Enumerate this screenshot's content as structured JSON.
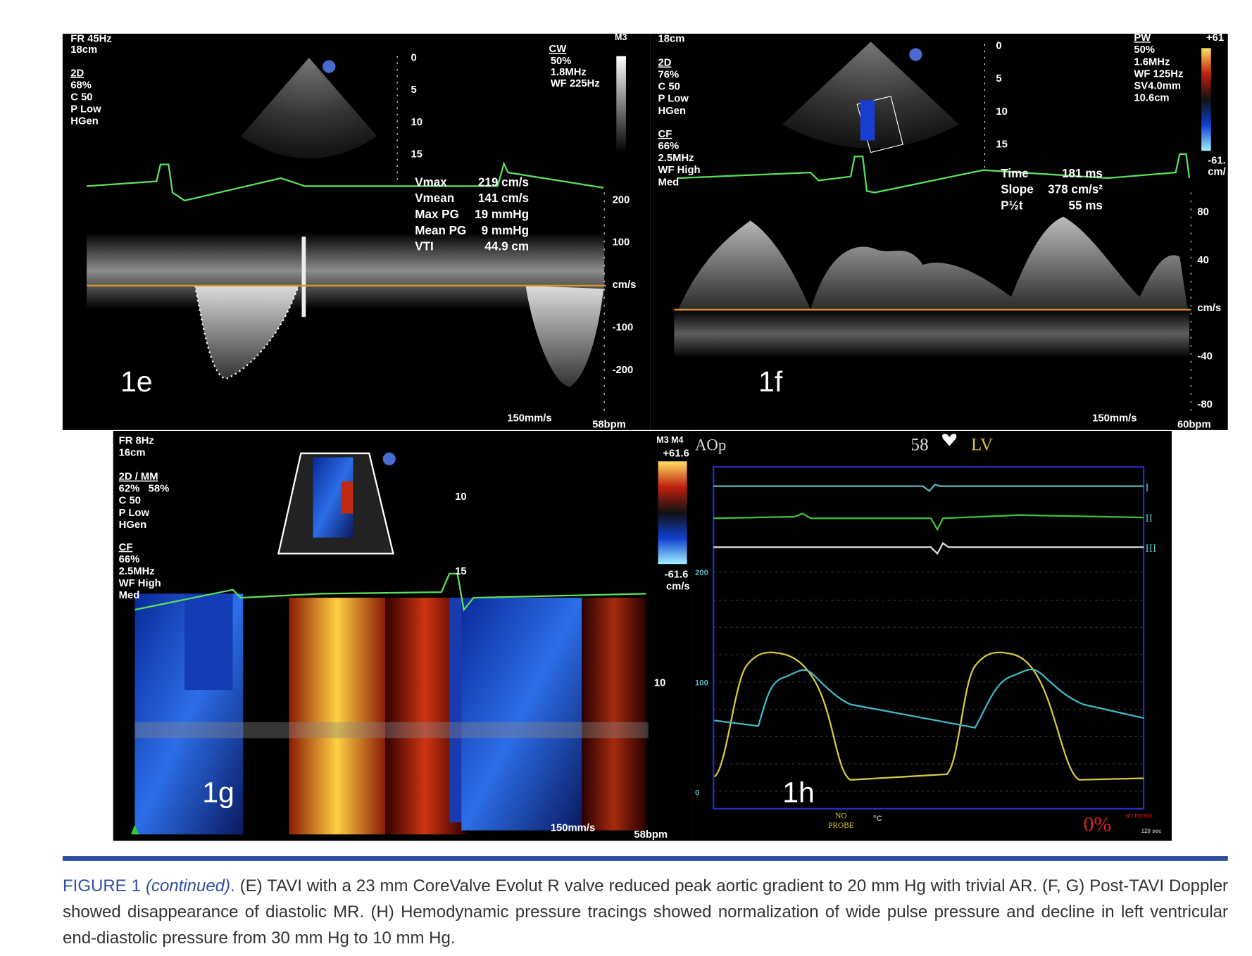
{
  "panels": {
    "e": {
      "label": "1e",
      "header": [
        "FR 45Hz",
        "18cm"
      ],
      "settings_2d": {
        "title": "2D",
        "lines": [
          "68%",
          "C 50",
          "P Low",
          "HGen"
        ]
      },
      "cw": {
        "title": "CW",
        "lines": [
          "50%",
          "1.8MHz",
          "WF 225Hz"
        ]
      },
      "map": "M3",
      "depth": [
        "0",
        "5",
        "10",
        "15"
      ],
      "measurements": [
        {
          "name": "Vmax",
          "value": "219 cm/s"
        },
        {
          "name": "Vmean",
          "value": "141 cm/s"
        },
        {
          "name": "Max PG",
          "value": "19 mmHg"
        },
        {
          "name": "Mean PG",
          "value": "9 mmHg"
        },
        {
          "name": "VTI",
          "value": "44.9 cm"
        }
      ],
      "scale": [
        "200",
        "100",
        "cm/s",
        "-100",
        "-200"
      ],
      "sweep": "150mm/s",
      "rate": "58bpm"
    },
    "f": {
      "label": "1f",
      "header": [
        "18cm"
      ],
      "settings_2d": {
        "title": "2D",
        "lines": [
          "76%",
          "C 50",
          "P Low",
          "HGen"
        ]
      },
      "cf": {
        "title": "CF",
        "lines": [
          "66%",
          "2.5MHz",
          "WF High",
          "Med"
        ]
      },
      "pw": {
        "title": "PW",
        "lines": [
          "50%",
          "1.6MHz",
          "WF 125Hz",
          "SV4.0mm",
          "10.6cm"
        ]
      },
      "colorbar": {
        "max": "+61",
        "min": "-61.",
        "unit": "cm/"
      },
      "depth": [
        "0",
        "5",
        "10",
        "15"
      ],
      "measurements": [
        {
          "name": "Time",
          "value": "181 ms"
        },
        {
          "name": "Slope",
          "value": "378 cm/s²"
        },
        {
          "name": "P½t",
          "value": "55 ms"
        }
      ],
      "scale": [
        "80",
        "40",
        "cm/s",
        "-40",
        "-80"
      ],
      "sweep": "150mm/s",
      "rate": "60bpm"
    },
    "g": {
      "label": "1g",
      "header": [
        "FR 8Hz",
        "16cm"
      ],
      "settings_2d": {
        "title": "2D / MM",
        "lines": [
          "62%   58%",
          "C 50",
          "P Low",
          "HGen"
        ]
      },
      "cf": {
        "title": "CF",
        "lines": [
          "66%",
          "2.5MHz",
          "WF High",
          "Med"
        ]
      },
      "depth": [
        "10",
        "15"
      ],
      "scale": [
        "10"
      ],
      "colorbar": {
        "map": "M3 M4",
        "max": "+61.6",
        "min": "-61.6",
        "unit": "cm/s"
      },
      "sweep": "150mm/s",
      "rate": "58bpm"
    },
    "h": {
      "label": "1h",
      "title": "AOp",
      "hr": "58",
      "channel": "LV",
      "pressure": [
        "200",
        "100",
        "0"
      ],
      "leads": [
        "I",
        "II",
        "III"
      ],
      "probe": [
        "NO",
        "PROBE"
      ],
      "temp": "°C",
      "spo2": "0%",
      "probe_alert": "NO PROBE",
      "time": "120 sec"
    }
  },
  "caption": {
    "figure": "FIGURE 1",
    "continued": "(continued)",
    "separator": ".",
    "text": "(E) TAVI with a 23 mm CoreValve Evolut R valve reduced peak aortic gradient to 20 mm Hg with trivial AR. (F, G) Post-TAVI Doppler showed disappearance of diastolic MR. (H) Hemodynamic pressure tracings showed normalization of wide pulse pressure and decline in left ventricular end-diastolic pressure from 30 mm Hg to 10 mm Hg."
  }
}
